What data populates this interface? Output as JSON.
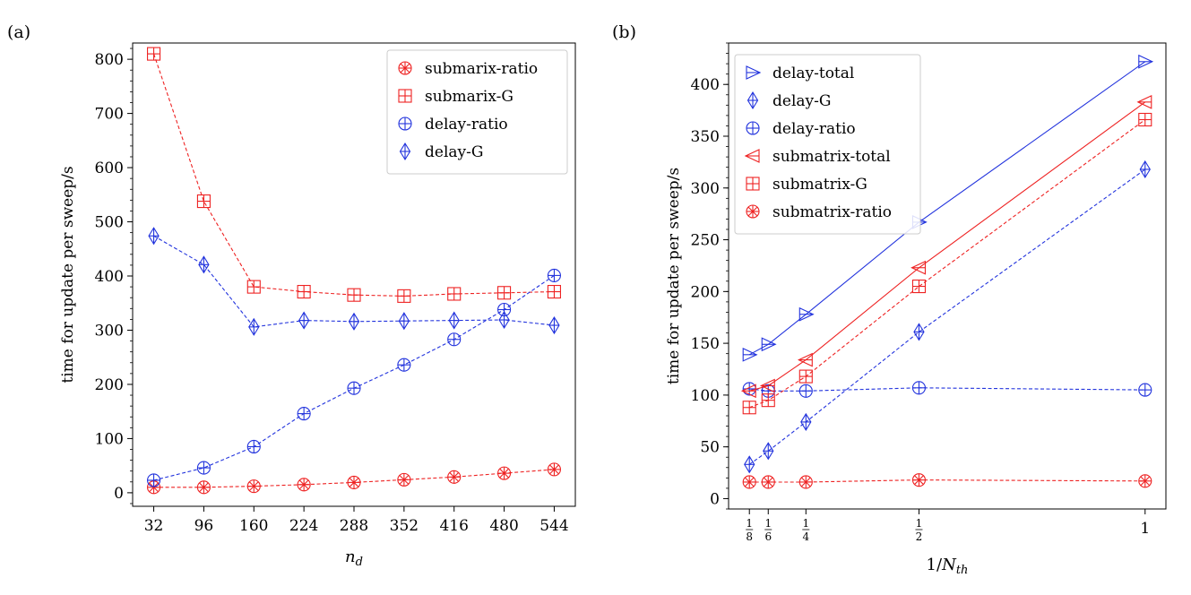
{
  "figure": {
    "panel_a_label": "(a)",
    "panel_b_label": "(b)"
  },
  "colors": {
    "red": "#ee2222",
    "blue": "#2233dd",
    "axis": "#000000"
  },
  "chart_data": [
    {
      "id": "a",
      "type": "line",
      "panel_label": "(a)",
      "xlabel_main": "n",
      "xlabel_sub": "d",
      "ylabel": "time for update per sweep/s",
      "xlim": [
        5,
        571
      ],
      "ylim": [
        -25,
        830
      ],
      "x_ticks": [
        32,
        96,
        160,
        224,
        288,
        352,
        416,
        480,
        544
      ],
      "x_tick_labels": [
        "32",
        "96",
        "160",
        "224",
        "288",
        "352",
        "416",
        "480",
        "544"
      ],
      "y_ticks": [
        0,
        100,
        200,
        300,
        400,
        500,
        600,
        700,
        800
      ],
      "y_tick_labels": [
        "0",
        "100",
        "200",
        "300",
        "400",
        "500",
        "600",
        "700",
        "800"
      ],
      "y_minor_step": 20,
      "legend_position": "top-right",
      "series": [
        {
          "name": "submarix-ratio",
          "color": "red",
          "marker": "xcircle",
          "dash": true,
          "x": [
            32,
            96,
            160,
            224,
            288,
            352,
            416,
            480,
            544
          ],
          "values": [
            10,
            10,
            12,
            15,
            19,
            24,
            29,
            36,
            43
          ]
        },
        {
          "name": "submarix-G",
          "color": "red",
          "marker": "square",
          "dash": true,
          "x": [
            32,
            96,
            160,
            224,
            288,
            352,
            416,
            480,
            544
          ],
          "values": [
            810,
            538,
            380,
            371,
            365,
            363,
            367,
            369,
            371
          ]
        },
        {
          "name": "delay-ratio",
          "color": "blue",
          "marker": "circle",
          "dash": true,
          "x": [
            32,
            96,
            160,
            224,
            288,
            352,
            416,
            480,
            544
          ],
          "values": [
            23,
            46,
            85,
            146,
            193,
            236,
            283,
            338,
            401
          ]
        },
        {
          "name": "delay-G",
          "color": "blue",
          "marker": "diamond",
          "dash": true,
          "x": [
            32,
            96,
            160,
            224,
            288,
            352,
            416,
            480,
            544
          ],
          "values": [
            474,
            421,
            306,
            318,
            316,
            317,
            318,
            319,
            309
          ]
        }
      ]
    },
    {
      "id": "b",
      "type": "line",
      "panel_label": "(b)",
      "xlabel_prefix": "1/",
      "xlabel_main": "N",
      "xlabel_sub": "th",
      "ylabel": "time for update per sweep/s",
      "xlim": [
        0.079,
        1.046
      ],
      "ylim": [
        -10,
        440
      ],
      "x_ticks": [
        0.125,
        0.1667,
        0.25,
        0.5,
        1.0
      ],
      "x_tick_labels": [
        {
          "num": "1",
          "den": "8"
        },
        {
          "num": "1",
          "den": "6"
        },
        {
          "num": "1",
          "den": "4"
        },
        {
          "num": "1",
          "den": "2"
        },
        {
          "text": "1"
        }
      ],
      "y_ticks": [
        0,
        50,
        100,
        150,
        200,
        250,
        300,
        350,
        400
      ],
      "y_tick_labels": [
        "0",
        "50",
        "100",
        "150",
        "200",
        "250",
        "300",
        "350",
        "400"
      ],
      "y_minor_step": 10,
      "legend_position": "top-left",
      "series": [
        {
          "name": "delay-total",
          "color": "blue",
          "marker": "triright",
          "dash": false,
          "x": [
            0.125,
            0.1667,
            0.25,
            0.5,
            1.0
          ],
          "values": [
            139,
            149,
            178,
            267,
            422
          ]
        },
        {
          "name": "delay-G",
          "color": "blue",
          "marker": "diamond",
          "dash": true,
          "x": [
            0.125,
            0.1667,
            0.25,
            0.5,
            1.0
          ],
          "values": [
            33,
            46,
            74,
            161,
            318
          ]
        },
        {
          "name": "delay-ratio",
          "color": "blue",
          "marker": "circle",
          "dash": true,
          "x": [
            0.125,
            0.1667,
            0.25,
            0.5,
            1.0
          ],
          "values": [
            106,
            104,
            104,
            107,
            105
          ]
        },
        {
          "name": "submatrix-total",
          "color": "red",
          "marker": "trileft",
          "dash": false,
          "x": [
            0.125,
            0.1667,
            0.25,
            0.5,
            1.0
          ],
          "values": [
            104,
            109,
            134,
            223,
            383
          ]
        },
        {
          "name": "submatrix-G",
          "color": "red",
          "marker": "square",
          "dash": true,
          "x": [
            0.125,
            0.1667,
            0.25,
            0.5,
            1.0
          ],
          "values": [
            88,
            95,
            118,
            205,
            366
          ]
        },
        {
          "name": "submatrix-ratio",
          "color": "red",
          "marker": "xcircle",
          "dash": true,
          "x": [
            0.125,
            0.1667,
            0.25,
            0.5,
            1.0
          ],
          "values": [
            16,
            16,
            16,
            18,
            17
          ]
        }
      ]
    }
  ]
}
